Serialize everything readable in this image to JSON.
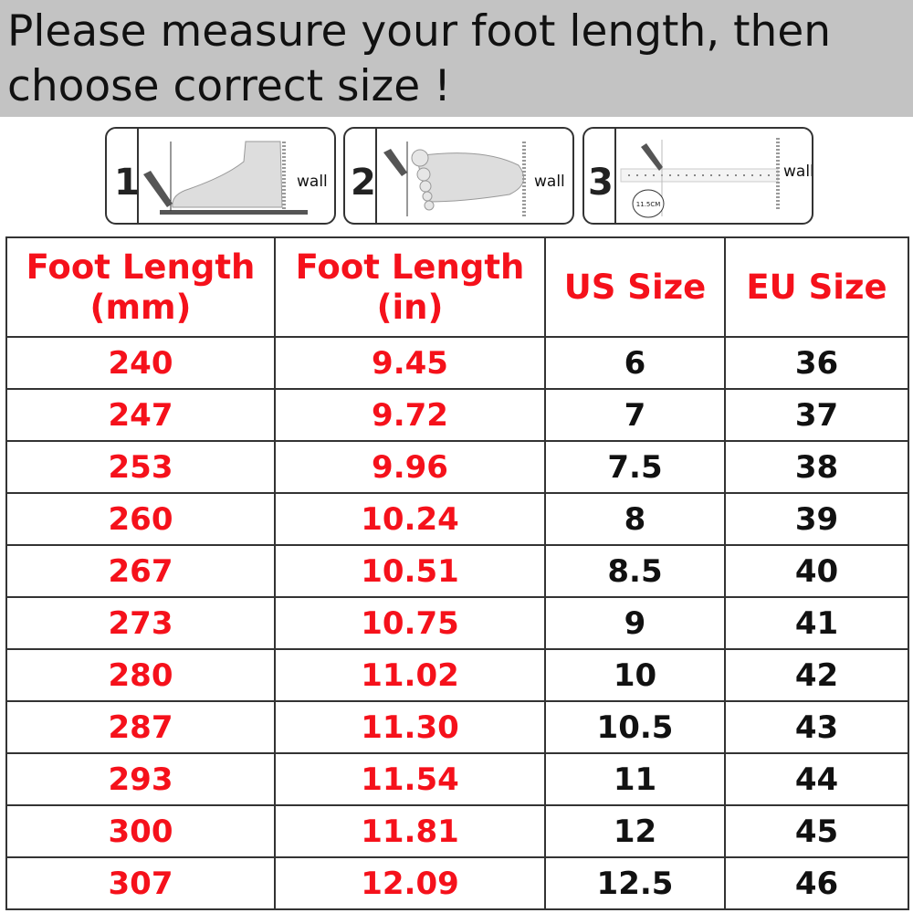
{
  "banner": {
    "line1": "Please measure your foot length, then",
    "line2": "choose correct size !",
    "background": "#c3c3c3"
  },
  "steps": [
    {
      "number": "1",
      "label": "wall",
      "icon": "foot-side-measure-illustration"
    },
    {
      "number": "2",
      "label": "wall",
      "icon": "foot-top-mark-illustration"
    },
    {
      "number": "3",
      "label": "wall",
      "ruler_label": "11.5CM",
      "icon": "ruler-measure-illustration"
    }
  ],
  "table": {
    "accent_color": "#f5111b",
    "headers": [
      "Foot Length (mm)",
      "Foot Length (in)",
      "US Size",
      "EU Size"
    ],
    "rows": [
      [
        "240",
        "9.45",
        "6",
        "36"
      ],
      [
        "247",
        "9.72",
        "7",
        "37"
      ],
      [
        "253",
        "9.96",
        "7.5",
        "38"
      ],
      [
        "260",
        "10.24",
        "8",
        "39"
      ],
      [
        "267",
        "10.51",
        "8.5",
        "40"
      ],
      [
        "273",
        "10.75",
        "9",
        "41"
      ],
      [
        "280",
        "11.02",
        "10",
        "42"
      ],
      [
        "287",
        "11.30",
        "10.5",
        "43"
      ],
      [
        "293",
        "11.54",
        "11",
        "44"
      ],
      [
        "300",
        "11.81",
        "12",
        "45"
      ],
      [
        "307",
        "12.09",
        "12.5",
        "46"
      ]
    ]
  }
}
